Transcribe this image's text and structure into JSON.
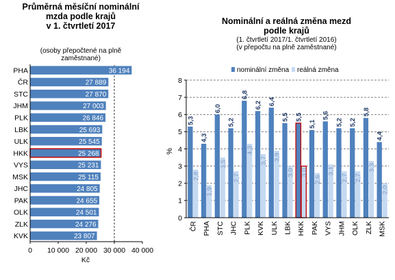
{
  "chart_data": [
    {
      "type": "bar",
      "orientation": "horizontal",
      "title": "Průměrná měsíční nominální mzda podle krajů v 1. čtvrtletí 2017",
      "title_lines": [
        "Průměrná měsíční nominální",
        "mzda podle krajů",
        "v 1. čtvrtletí 2017"
      ],
      "subtitle_lines": [
        "(osoby přepočtené na plně",
        "zaměstnané)"
      ],
      "categories": [
        "PHA",
        "ČR",
        "STC",
        "JHM",
        "PLK",
        "LBK",
        "ULK",
        "HKK",
        "VYS",
        "MSK",
        "JHC",
        "PAK",
        "OLK",
        "ZLK",
        "KVK"
      ],
      "values": [
        36194,
        27889,
        27870,
        27003,
        26846,
        25693,
        25545,
        25268,
        25231,
        25115,
        24805,
        24655,
        24501,
        24276,
        23807
      ],
      "value_labels": [
        "36 194",
        "27 889",
        "27 870",
        "27 003",
        "26 846",
        "25 693",
        "25 545",
        "25 268",
        "25 231",
        "25 115",
        "24 805",
        "24 655",
        "24 501",
        "24 276",
        "23 807"
      ],
      "highlight": "HKK",
      "xlabel": "Kč",
      "xlim": [
        0,
        40000
      ],
      "xticks": [
        0,
        10000,
        20000,
        30000,
        40000
      ],
      "xtick_labels": [
        "0",
        "10 000",
        "20 000",
        "30 000",
        "40 000"
      ],
      "reference_lines": [
        30000
      ],
      "colors": {
        "bar": "#4f81bd",
        "highlight_border": "#c00000",
        "label": "#ffffff"
      }
    },
    {
      "type": "bar",
      "title": "Nominální a reálná změna mezd podle krajů",
      "title_lines": [
        "Nominální a reálná změna mezd",
        "podle krajů"
      ],
      "subtitle_lines": [
        "(1. čtvrtletí 2017/1. čtvrtletí 2016)",
        "(v přepočtu na plně zaměstnané)"
      ],
      "categories": [
        "ČR",
        "PHA",
        "STC",
        "JHC",
        "PLK",
        "KVK",
        "ULK",
        "LBK",
        "HKK",
        "PAK",
        "VYS",
        "JHM",
        "OLK",
        "ZLK",
        "MSK"
      ],
      "series": [
        {
          "name": "nominální změna",
          "values": [
            5.3,
            4.3,
            6.0,
            5.2,
            6.8,
            6.2,
            6.4,
            5.5,
            5.5,
            5.1,
            5.6,
            5.2,
            5.2,
            5.8,
            4.4
          ],
          "labels": [
            "5,3",
            "4,3",
            "6,0",
            "5,2",
            "6,8",
            "6,2",
            "6,4",
            "5,5",
            "5,5",
            "5,1",
            "5,6",
            "5,2",
            "5,2",
            "5,8",
            "4,4"
          ]
        },
        {
          "name": "reálná změna",
          "values": [
            2.8,
            1.9,
            3.5,
            2.7,
            4.3,
            3.7,
            3.9,
            3.0,
            3.0,
            2.6,
            3.1,
            2.7,
            2.7,
            3.3,
            2.0
          ],
          "labels": [
            "2,8",
            "1,9",
            "3,5",
            "2,7",
            "4,3",
            "3,7",
            "3,9",
            "3,0",
            "3,0",
            "2,6",
            "3,1",
            "2,7",
            "2,7",
            "3,3",
            "2,0"
          ]
        }
      ],
      "highlight": "HKK",
      "ylabel": "%",
      "ylim": [
        0,
        8
      ],
      "yticks": [
        0,
        1,
        2,
        3,
        4,
        5,
        6,
        7,
        8
      ],
      "grid": "dashed-horizontal",
      "legend": "top",
      "colors": {
        "nominal": "#4f81bd",
        "real": "#c5d9f1",
        "highlight_border": "#c00000"
      }
    }
  ]
}
